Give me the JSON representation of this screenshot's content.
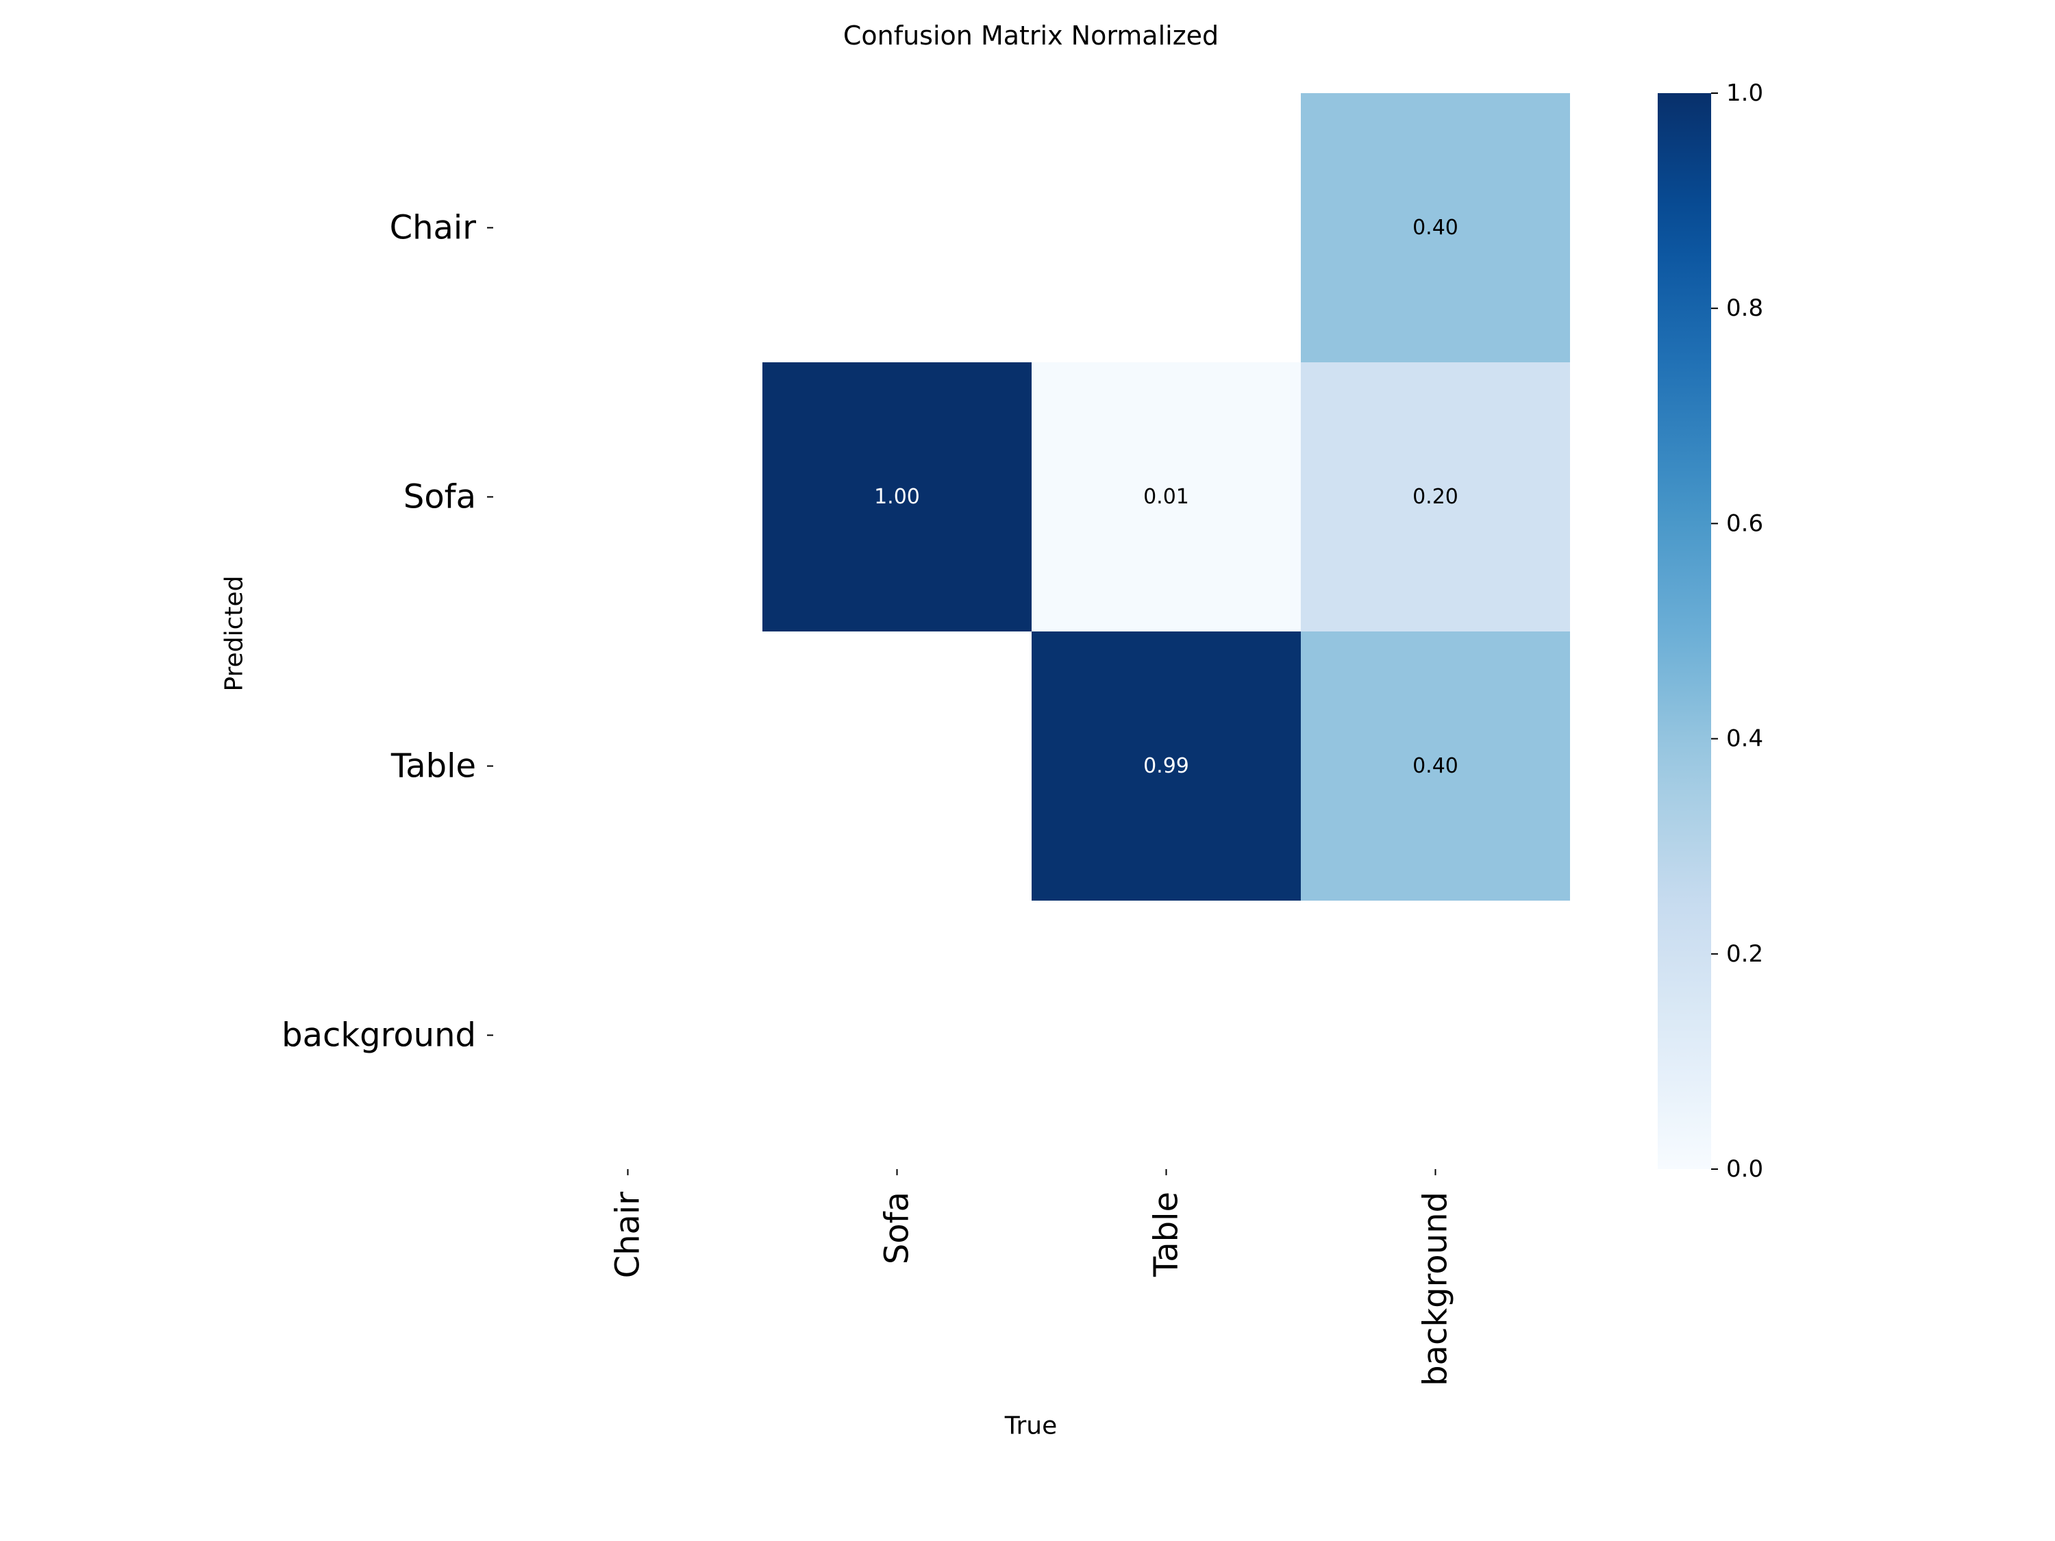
{
  "chart_data": {
    "type": "heatmap",
    "title": "Confusion Matrix Normalized",
    "xlabel": "True",
    "ylabel": "Predicted",
    "x_categories": [
      "Chair",
      "Sofa",
      "Table",
      "background"
    ],
    "y_categories": [
      "Chair",
      "Sofa",
      "Table",
      "background"
    ],
    "values": [
      [
        null,
        null,
        null,
        0.4
      ],
      [
        null,
        1.0,
        0.01,
        0.2
      ],
      [
        null,
        null,
        0.99,
        0.4
      ],
      [
        null,
        null,
        null,
        null
      ]
    ],
    "value_labels": [
      [
        null,
        null,
        null,
        "0.40"
      ],
      [
        null,
        "1.00",
        "0.01",
        "0.20"
      ],
      [
        null,
        null,
        "0.99",
        "0.40"
      ],
      [
        null,
        null,
        null,
        null
      ]
    ],
    "colorbar": {
      "range": [
        0,
        1
      ],
      "ticks": [
        0.0,
        0.2,
        0.4,
        0.6,
        0.8,
        1.0
      ],
      "tick_labels": [
        "0.0",
        "0.2",
        "0.4",
        "0.6",
        "0.8",
        "1.0"
      ],
      "colormap": "Blues"
    }
  }
}
